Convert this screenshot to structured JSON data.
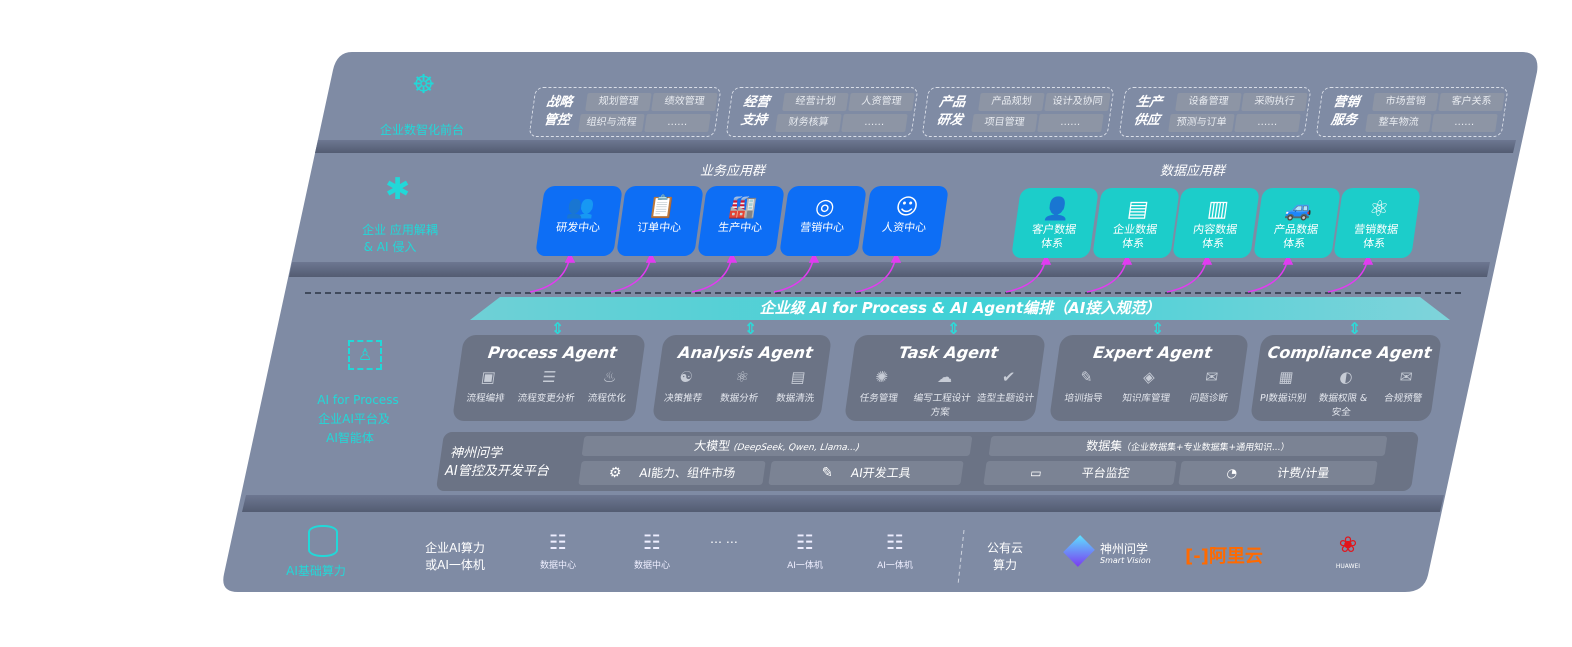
{
  "layers": {
    "front": {
      "label": "企业数智化前台",
      "icon": "brain-head-icon"
    },
    "apps": {
      "label": "企业 应用解耦",
      "label2": "& AI 侵入",
      "icon": "molecule-icon"
    },
    "ai": {
      "label": "AI for Process",
      "label2": "企业AI平台及",
      "label3": "AI智能体",
      "icon": "face-scan-icon"
    },
    "compute": {
      "label": "AI基础算力",
      "icon": "database-icon"
    }
  },
  "groups": [
    {
      "title": "战略管控",
      "items": [
        "规划管理",
        "绩效管理",
        "组织与流程",
        "……"
      ]
    },
    {
      "title": "经营支持",
      "items": [
        "经营计划",
        "人资管理",
        "财务核算",
        "……"
      ]
    },
    {
      "title": "产品研发",
      "items": [
        "产品规划",
        "设计及协同",
        "项目管理",
        "……"
      ]
    },
    {
      "title": "生产供应",
      "items": [
        "设备管理",
        "采购执行",
        "预测与订单",
        "……"
      ]
    },
    {
      "title": "营销服务",
      "items": [
        "市场营销",
        "客户关系",
        "整车物流",
        "……"
      ]
    }
  ],
  "business_apps": {
    "title": "业务应用群",
    "items": [
      {
        "label": "研发中心",
        "icon": "users-icon"
      },
      {
        "label": "订单中心",
        "icon": "clipboard-icon"
      },
      {
        "label": "生产中心",
        "icon": "factory-icon"
      },
      {
        "label": "营销中心",
        "icon": "target-icon"
      },
      {
        "label": "人资中心",
        "icon": "person-icon"
      }
    ]
  },
  "data_apps": {
    "title": "数据应用群",
    "items": [
      {
        "label": "客户数据",
        "label2": "体系",
        "icon": "user-icon"
      },
      {
        "label": "企业数据",
        "label2": "体系",
        "icon": "building-icon"
      },
      {
        "label": "内容数据",
        "label2": "体系",
        "icon": "books-icon"
      },
      {
        "label": "产品数据",
        "label2": "体系",
        "icon": "car-icon"
      },
      {
        "label": "营销数据",
        "label2": "体系",
        "icon": "atom-icon"
      }
    ]
  },
  "banner": "企业级 AI for Process & AI Agent编排（AI接入规范）",
  "agents": [
    {
      "title": "Process Agent",
      "items": [
        "流程编排",
        "流程变更分析",
        "流程优化"
      ]
    },
    {
      "title": "Analysis Agent",
      "items": [
        "决策推荐",
        "数据分析",
        "数据清洗"
      ]
    },
    {
      "title": "Task Agent",
      "items": [
        "任务管理",
        "编写工程设计方案",
        "造型主题设计"
      ]
    },
    {
      "title": "Expert Agent",
      "items": [
        "培训指导",
        "知识库管理",
        "问题诊断"
      ]
    },
    {
      "title": "Compliance Agent",
      "items": [
        "PI数据识别",
        "数据权限 & 安全",
        "合规预警"
      ]
    }
  ],
  "platform": {
    "title": "神州问学",
    "title2": "AI管控及开发平台",
    "model": "大模型",
    "model_note": "(DeepSeek, Qwen, Llama...)",
    "market": "AI能力、组件市场",
    "devtools": "AI开发工具",
    "dataset": "数据集",
    "dataset_note": "（企业数据集+专业数据集+通用知识...）",
    "monitor": "平台监控",
    "billing": "计费/计量"
  },
  "compute": {
    "private_label": "企业AI算力",
    "private_label2": "或AI一体机",
    "servers": [
      "数据中心",
      "数据中心",
      "AI一体机",
      "AI一体机"
    ],
    "ellipsis": "… …",
    "public_label": "公有云",
    "public_label2": "算力",
    "vendors": {
      "sv_cn": "神州问学",
      "sv_en": "Smart Vision",
      "aliyun": "阿里云",
      "huawei": "HUAWEI"
    },
    "colors": {
      "aliyun": "#ff6a00",
      "huawei": "#e3141b"
    }
  },
  "colors": {
    "panel": "#7f8ba4",
    "blue_tile": "#0d6ef5",
    "teal_tile": "#1ccdca",
    "accent_teal": "#22d8d8",
    "arrow": "#e13cf0"
  }
}
